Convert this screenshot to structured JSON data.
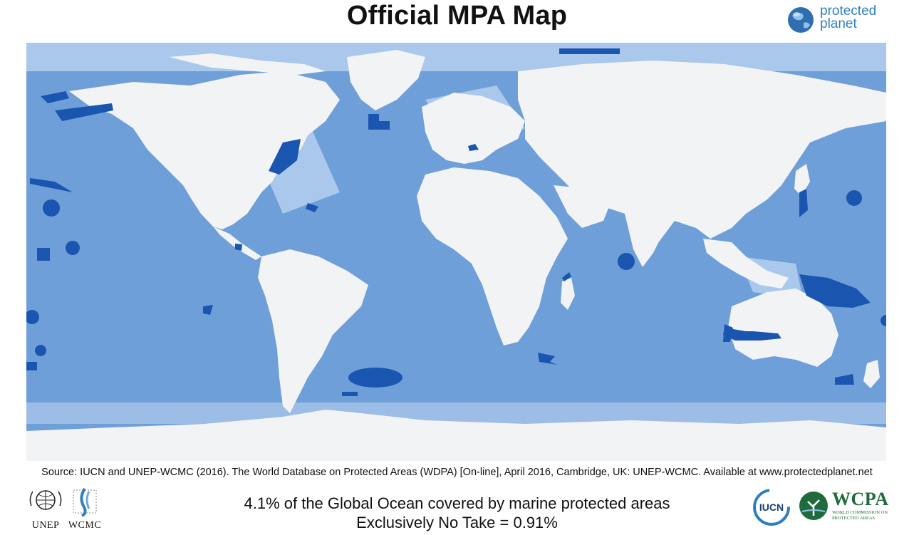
{
  "title": "Official MPA Map",
  "logos": {
    "protected_planet": [
      "protected",
      "planet"
    ],
    "unep": "UNEP",
    "wcmc": "WCMC",
    "iucn": "IUCN",
    "wcpa": "WCPA",
    "wcpa_subtitle": "WORLD COMMISSION ON PROTECTED AREAS"
  },
  "source": "Source: IUCN and UNEP-WCMC (2016). The World Database on Protected Areas (WDPA) [On-line], April 2016, Cambridge, UK: UNEP-WCMC. Available at www.protectedplanet.net",
  "stats": {
    "coverage": "4.1% of the Global Ocean covered by marine protected areas",
    "no_take": "Exclusively No Take = 0.91%"
  },
  "colors": {
    "ocean": "#6f9fd8",
    "shelf": "#a9c8ec",
    "land": "#f2f3f4",
    "mpa": "#1a55b0",
    "pp_blue": "#2f7fbf",
    "wcpa_green": "#1e6b3c"
  }
}
